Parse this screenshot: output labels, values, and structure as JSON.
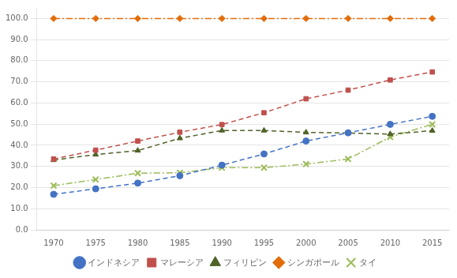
{
  "chart_data": {
    "type": "line",
    "x": [
      1970,
      1975,
      1980,
      1985,
      1990,
      1995,
      2000,
      2005,
      2010,
      2015
    ],
    "series": [
      {
        "name": "インドネシア",
        "color": "#4472C4",
        "marker": "circle",
        "line_style": "dashed",
        "values": [
          16.8,
          19.4,
          22.1,
          25.6,
          30.6,
          35.9,
          42.0,
          45.9,
          49.9,
          53.7
        ]
      },
      {
        "name": "マレーシア",
        "color": "#C0504D",
        "marker": "square",
        "line_style": "dashed",
        "values": [
          33.5,
          37.7,
          42.0,
          46.2,
          49.8,
          55.4,
          62.0,
          66.1,
          70.9,
          74.7
        ]
      },
      {
        "name": "フィリピン",
        "color": "#4F6228",
        "marker": "triangle",
        "line_style": "dashed",
        "values": [
          33.0,
          35.6,
          37.5,
          43.3,
          47.0,
          47.0,
          46.1,
          45.8,
          45.3,
          46.9
        ]
      },
      {
        "name": "シンガポール",
        "color": "#E36C09",
        "marker": "diamond",
        "line_style": "dashdot",
        "values": [
          100.0,
          100.0,
          100.0,
          100.0,
          100.0,
          100.0,
          100.0,
          100.0,
          100.0,
          100.0
        ]
      },
      {
        "name": "タイ",
        "color": "#9BBB59",
        "marker": "x",
        "line_style": "dashdot",
        "values": [
          20.9,
          23.8,
          26.8,
          27.0,
          29.4,
          29.4,
          31.1,
          33.5,
          43.9,
          49.9
        ]
      }
    ],
    "xlim": [
      1968,
      2017
    ],
    "xticks": [
      1970,
      1975,
      1980,
      1985,
      1990,
      1995,
      2000,
      2005,
      2010,
      2015
    ],
    "ylim": [
      0.0,
      105.0
    ],
    "yticks": [
      {
        "value": 0,
        "label": "0.0"
      },
      {
        "value": 10,
        "label": "10.0"
      },
      {
        "value": 20,
        "label": "20.0"
      },
      {
        "value": 30,
        "label": "30.0"
      },
      {
        "value": 40,
        "label": "40.0"
      },
      {
        "value": 50,
        "label": "50.0"
      },
      {
        "value": 60,
        "label": "60.0"
      },
      {
        "value": 70,
        "label": "70.0"
      },
      {
        "value": 80,
        "label": "80.0"
      },
      {
        "value": 90,
        "label": "90.0"
      },
      {
        "value": 100,
        "label": "100.0"
      }
    ],
    "grid": "y",
    "legend": "bottom"
  }
}
